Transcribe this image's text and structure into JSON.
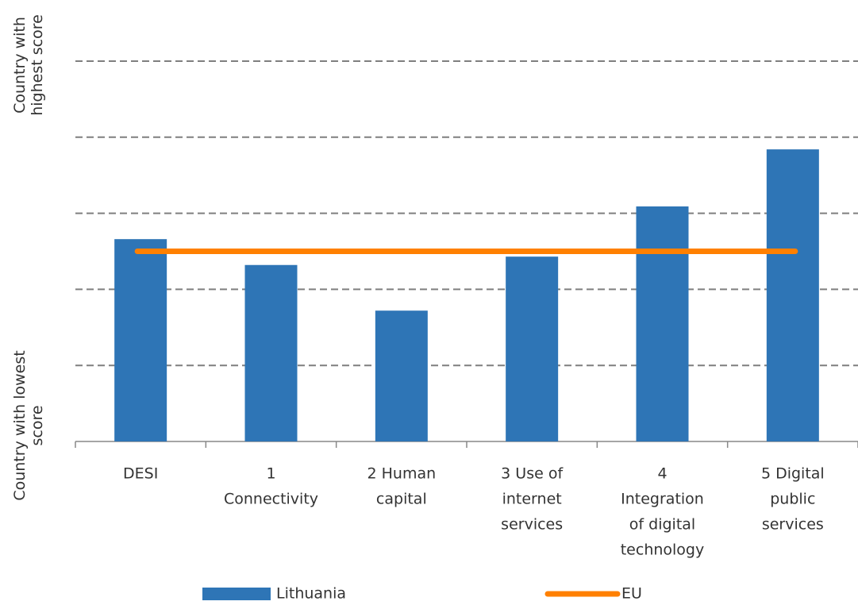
{
  "chart_data": {
    "type": "bar",
    "categories": [
      [
        "DESI"
      ],
      [
        "1",
        "Connectivity"
      ],
      [
        "2 Human",
        "capital"
      ],
      [
        "3 Use of",
        "internet",
        "services"
      ],
      [
        "4",
        "Integration",
        "of digital",
        "technology"
      ],
      [
        "5 Digital",
        "public",
        "services"
      ]
    ],
    "series": [
      {
        "name": "Lithuania",
        "type": "bar",
        "color": "#2e75b6",
        "values": [
          2.66,
          2.32,
          1.72,
          2.43,
          3.09,
          3.84
        ]
      },
      {
        "name": "EU",
        "type": "line",
        "color": "#ff8000",
        "values": [
          2.5,
          2.5,
          2.5,
          2.5,
          2.5,
          2.5
        ]
      }
    ],
    "ylim": [
      0,
      5
    ],
    "yticks": [
      {
        "value": 0,
        "label": [
          "Country with lowest",
          "score"
        ]
      },
      {
        "value": 5,
        "label": [
          "Country with",
          "highest score"
        ]
      }
    ],
    "grid_lines": [
      1,
      2,
      3,
      4,
      5
    ],
    "legend": "bottom"
  }
}
